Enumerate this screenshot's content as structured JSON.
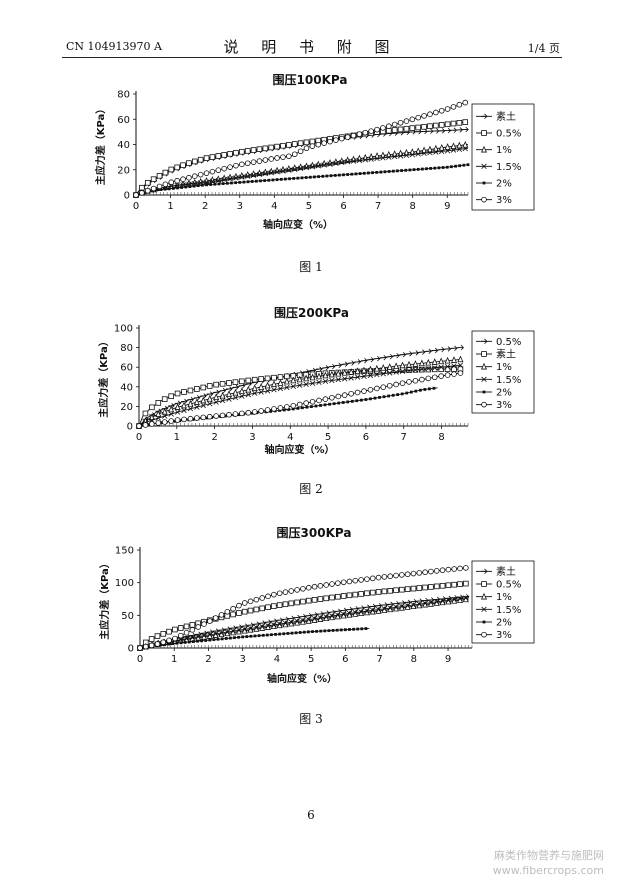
{
  "header": {
    "patent_no": "CN 104913970 A",
    "section_title": "说 明 书 附 图",
    "page_ref": "1/4 页"
  },
  "chart_data": [
    {
      "type": "line",
      "title": "围压100KPa",
      "xlabel": "轴向应变（%）",
      "ylabel": "主应力差（KPa）",
      "xlim": [
        0,
        9.6
      ],
      "ylim": [
        0,
        80
      ],
      "xticks": [
        0,
        1,
        2,
        3,
        4,
        5,
        6,
        7,
        8,
        9
      ],
      "yticks": [
        0,
        20,
        40,
        60,
        80
      ],
      "legend_position": "right",
      "caption": "图 1",
      "series": [
        {
          "name": "素土",
          "marker": "diamond",
          "points": [
            [
              0,
              0
            ],
            [
              0.1,
              4
            ],
            [
              0.3,
              8
            ],
            [
              0.6,
              13
            ],
            [
              1,
              19
            ],
            [
              1.5,
              24
            ],
            [
              2,
              28
            ],
            [
              3,
              33
            ],
            [
              4,
              37
            ],
            [
              5,
              41
            ],
            [
              6,
              45
            ],
            [
              7,
              48
            ],
            [
              8,
              50
            ],
            [
              9,
              51
            ],
            [
              9.6,
              52
            ]
          ]
        },
        {
          "name": "0.5%",
          "marker": "square",
          "points": [
            [
              0,
              0
            ],
            [
              0.1,
              4
            ],
            [
              0.3,
              9
            ],
            [
              0.6,
              14
            ],
            [
              1,
              20
            ],
            [
              1.5,
              25
            ],
            [
              2,
              29
            ],
            [
              3,
              34
            ],
            [
              4,
              38
            ],
            [
              5,
              42
            ],
            [
              6,
              46
            ],
            [
              7,
              50
            ],
            [
              8,
              53
            ],
            [
              9,
              56
            ],
            [
              9.6,
              58
            ]
          ]
        },
        {
          "name": "1%",
          "marker": "triangle",
          "points": [
            [
              0,
              0
            ],
            [
              0.3,
              3
            ],
            [
              0.6,
              5
            ],
            [
              1,
              7
            ],
            [
              2,
              11
            ],
            [
              3,
              15
            ],
            [
              4,
              19
            ],
            [
              5,
              23
            ],
            [
              6,
              27
            ],
            [
              7,
              31
            ],
            [
              8,
              34
            ],
            [
              9,
              38
            ],
            [
              9.6,
              40
            ]
          ]
        },
        {
          "name": "1.5%",
          "marker": "x",
          "points": [
            [
              0,
              0
            ],
            [
              0.3,
              3
            ],
            [
              0.6,
              5
            ],
            [
              1,
              7
            ],
            [
              2,
              10
            ],
            [
              3,
              14
            ],
            [
              4,
              18
            ],
            [
              5,
              22
            ],
            [
              6,
              26
            ],
            [
              7,
              29
            ],
            [
              8,
              32
            ],
            [
              9,
              35
            ],
            [
              9.6,
              37
            ]
          ]
        },
        {
          "name": "2%",
          "marker": "dot",
          "points": [
            [
              0,
              0
            ],
            [
              0.3,
              2
            ],
            [
              0.6,
              4
            ],
            [
              1,
              5
            ],
            [
              2,
              8
            ],
            [
              3,
              10
            ],
            [
              4,
              12
            ],
            [
              5,
              14
            ],
            [
              6,
              16
            ],
            [
              7,
              18
            ],
            [
              8,
              20
            ],
            [
              9,
              22
            ],
            [
              9.6,
              24
            ]
          ]
        },
        {
          "name": "3%",
          "marker": "circle",
          "points": [
            [
              0,
              0
            ],
            [
              0.3,
              3
            ],
            [
              0.6,
              6
            ],
            [
              1,
              10
            ],
            [
              2,
              17
            ],
            [
              3,
              24
            ],
            [
              4,
              29
            ],
            [
              4.5,
              31
            ],
            [
              5,
              38
            ],
            [
              6,
              45
            ],
            [
              7,
              52
            ],
            [
              8,
              60
            ],
            [
              9,
              68
            ],
            [
              9.6,
              74
            ]
          ]
        }
      ]
    },
    {
      "type": "line",
      "title": "围压200KPa",
      "xlabel": "轴向应变（%）",
      "ylabel": "主应力差（KPa）",
      "xlim": [
        0,
        8.7
      ],
      "ylim": [
        0,
        100
      ],
      "xticks": [
        0,
        1,
        2,
        3,
        4,
        5,
        6,
        7,
        8
      ],
      "yticks": [
        0,
        20,
        40,
        60,
        80,
        100
      ],
      "legend_position": "right",
      "caption": "图 2",
      "series": [
        {
          "name": "0.5%",
          "marker": "diamond",
          "points": [
            [
              0,
              0
            ],
            [
              0.2,
              8
            ],
            [
              0.5,
              15
            ],
            [
              1,
              23
            ],
            [
              2,
              34
            ],
            [
              3,
              44
            ],
            [
              4,
              52
            ],
            [
              5,
              60
            ],
            [
              6,
              67
            ],
            [
              7,
              73
            ],
            [
              8,
              78
            ],
            [
              8.5,
              80
            ]
          ]
        },
        {
          "name": "素土",
          "marker": "square",
          "points": [
            [
              0,
              0
            ],
            [
              0.1,
              10
            ],
            [
              0.3,
              18
            ],
            [
              0.6,
              26
            ],
            [
              1,
              33
            ],
            [
              2,
              42
            ],
            [
              3,
              47
            ],
            [
              4,
              51
            ],
            [
              5,
              54
            ],
            [
              6,
              56
            ],
            [
              7,
              57
            ],
            [
              8,
              58
            ],
            [
              8.5,
              58
            ]
          ]
        },
        {
          "name": "1%",
          "marker": "triangle",
          "points": [
            [
              0,
              0
            ],
            [
              0.2,
              6
            ],
            [
              0.5,
              12
            ],
            [
              1,
              19
            ],
            [
              2,
              29
            ],
            [
              3,
              38
            ],
            [
              4,
              46
            ],
            [
              5,
              52
            ],
            [
              6,
              57
            ],
            [
              7,
              62
            ],
            [
              8,
              66
            ],
            [
              8.5,
              68
            ]
          ]
        },
        {
          "name": "1.5%",
          "marker": "x",
          "points": [
            [
              0,
              0
            ],
            [
              0.2,
              4
            ],
            [
              0.5,
              8
            ],
            [
              1,
              14
            ],
            [
              2,
              24
            ],
            [
              3,
              33
            ],
            [
              4,
              40
            ],
            [
              5,
              46
            ],
            [
              6,
              51
            ],
            [
              7,
              56
            ],
            [
              8,
              60
            ],
            [
              8.5,
              62
            ]
          ]
        },
        {
          "name": "2%",
          "marker": "dot",
          "points": [
            [
              0,
              0
            ],
            [
              0.5,
              3
            ],
            [
              1,
              5
            ],
            [
              2,
              9
            ],
            [
              3,
              13
            ],
            [
              4,
              17
            ],
            [
              5,
              22
            ],
            [
              6,
              27
            ],
            [
              7,
              33
            ],
            [
              7.5,
              37
            ],
            [
              7.9,
              39
            ]
          ]
        },
        {
          "name": "3%",
          "marker": "circle",
          "points": [
            [
              0,
              0
            ],
            [
              0.5,
              3
            ],
            [
              1,
              6
            ],
            [
              2,
              10
            ],
            [
              3,
              14
            ],
            [
              4,
              20
            ],
            [
              5,
              28
            ],
            [
              6,
              36
            ],
            [
              7,
              44
            ],
            [
              8,
              51
            ],
            [
              8.5,
              54
            ]
          ]
        }
      ]
    },
    {
      "type": "line",
      "title": "围压300KPa",
      "xlabel": "轴向应变（%）",
      "ylabel": "主应力差（KPa）",
      "xlim": [
        0,
        9.7
      ],
      "ylim": [
        0,
        150
      ],
      "xticks": [
        0,
        1,
        2,
        3,
        4,
        5,
        6,
        7,
        8,
        9
      ],
      "yticks": [
        0,
        50,
        100,
        150
      ],
      "legend_position": "right",
      "caption": "图 3",
      "series": [
        {
          "name": "素土",
          "marker": "diamond",
          "points": [
            [
              0,
              0
            ],
            [
              0.5,
              8
            ],
            [
              1,
              14
            ],
            [
              2,
              24
            ],
            [
              3,
              33
            ],
            [
              4,
              42
            ],
            [
              5,
              50
            ],
            [
              6,
              58
            ],
            [
              7,
              65
            ],
            [
              8,
              71
            ],
            [
              9,
              76
            ],
            [
              9.6,
              79
            ]
          ]
        },
        {
          "name": "0.5%",
          "marker": "square",
          "points": [
            [
              0,
              0
            ],
            [
              0.2,
              10
            ],
            [
              0.5,
              18
            ],
            [
              1,
              28
            ],
            [
              2,
              42
            ],
            [
              3,
              55
            ],
            [
              4,
              65
            ],
            [
              5,
              73
            ],
            [
              6,
              80
            ],
            [
              7,
              86
            ],
            [
              8,
              91
            ],
            [
              9,
              96
            ],
            [
              9.6,
              99
            ]
          ]
        },
        {
          "name": "1%",
          "marker": "triangle",
          "points": [
            [
              0,
              0
            ],
            [
              0.5,
              6
            ],
            [
              1,
              10
            ],
            [
              2,
              18
            ],
            [
              3,
              26
            ],
            [
              4,
              34
            ],
            [
              5,
              42
            ],
            [
              6,
              50
            ],
            [
              7,
              57
            ],
            [
              8,
              64
            ],
            [
              9,
              71
            ],
            [
              9.6,
              75
            ]
          ]
        },
        {
          "name": "1.5%",
          "marker": "x",
          "points": [
            [
              0,
              0
            ],
            [
              0.5,
              6
            ],
            [
              1,
              11
            ],
            [
              2,
              20
            ],
            [
              3,
              28
            ],
            [
              4,
              36
            ],
            [
              5,
              44
            ],
            [
              6,
              52
            ],
            [
              7,
              59
            ],
            [
              8,
              66
            ],
            [
              9,
              73
            ],
            [
              9.6,
              77
            ]
          ]
        },
        {
          "name": "2%",
          "marker": "dot",
          "points": [
            [
              0,
              0
            ],
            [
              0.5,
              4
            ],
            [
              1,
              7
            ],
            [
              2,
              12
            ],
            [
              3,
              17
            ],
            [
              4,
              21
            ],
            [
              5,
              25
            ],
            [
              6,
              28
            ],
            [
              6.7,
              30
            ]
          ]
        },
        {
          "name": "3%",
          "marker": "circle",
          "points": [
            [
              0,
              0
            ],
            [
              0.5,
              6
            ],
            [
              1,
              14
            ],
            [
              2,
              40
            ],
            [
              3,
              68
            ],
            [
              4,
              83
            ],
            [
              5,
              93
            ],
            [
              6,
              101
            ],
            [
              7,
              108
            ],
            [
              8,
              114
            ],
            [
              9,
              120
            ],
            [
              9.6,
              123
            ]
          ]
        }
      ]
    }
  ],
  "page_number": "6",
  "watermark": {
    "line1": "麻类作物营养与施肥网",
    "line2": "www.fibercrops.com"
  }
}
